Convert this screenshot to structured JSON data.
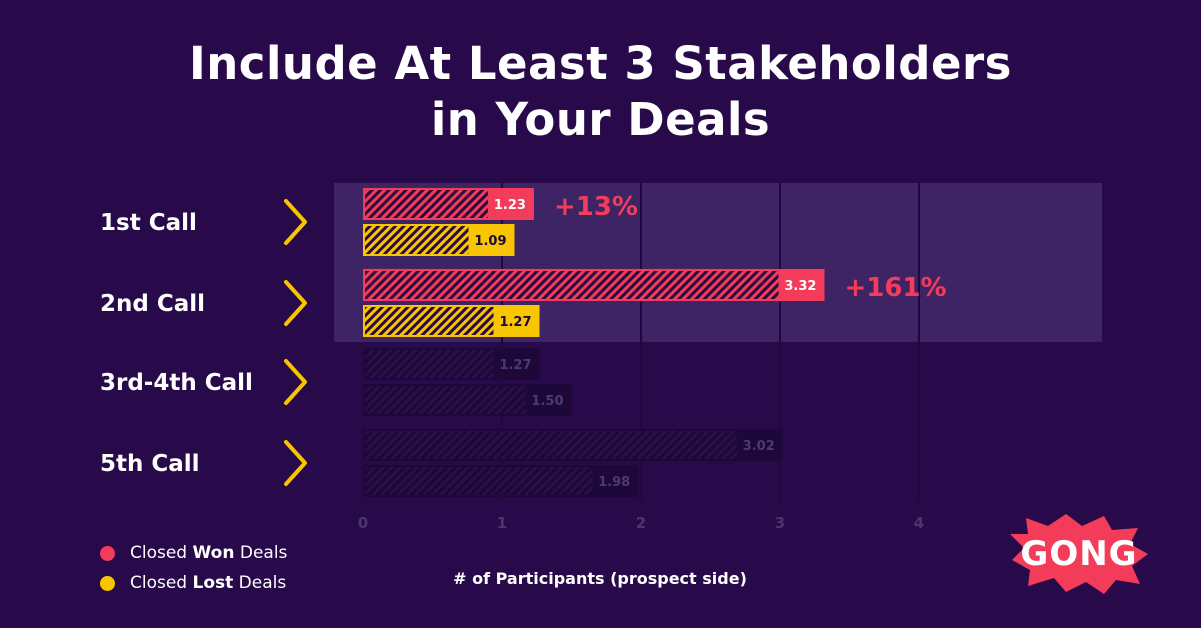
{
  "title": {
    "line1": "Include At Least 3 Stakeholders",
    "line2": "in Your Deals"
  },
  "chart_data": {
    "type": "bar",
    "orientation": "horizontal",
    "categories": [
      "1st Call",
      "2nd Call",
      "3rd-4th Call",
      "5th Call"
    ],
    "series": [
      {
        "name": "Closed Won Deals",
        "values": [
          1.23,
          3.32,
          1.27,
          3.02
        ]
      },
      {
        "name": "Closed Lost Deals",
        "values": [
          1.09,
          1.27,
          1.5,
          1.98
        ]
      }
    ],
    "value_labels": {
      "won": [
        "1.23",
        "3.32",
        "1.27",
        "3.02"
      ],
      "lost": [
        "1.09",
        "1.27",
        "1.50",
        "1.98"
      ]
    },
    "annotations": [
      "+13%",
      "+161%"
    ],
    "highlighted_categories": [
      "1st Call",
      "2nd Call"
    ],
    "x_ticks": [
      0,
      1,
      2,
      3,
      4
    ],
    "xlim": [
      0,
      4.3
    ],
    "xlabel": "# of Participants (prospect side)",
    "legend_position": "bottom-left",
    "grid": true
  },
  "legend": {
    "won": {
      "pre": "Closed ",
      "bold": "Won",
      "post": " Deals"
    },
    "lost": {
      "pre": "Closed ",
      "bold": "Lost",
      "post": " Deals"
    }
  },
  "colors": {
    "background": "#280a4b",
    "won": "#f23c5a",
    "lost": "#f7c600",
    "highlight_band": "#3f2465",
    "muted_bar": "#1e0839",
    "chevron": "#f7c600"
  },
  "icons": {
    "chevron": "chevron-right-icon",
    "logo": "gong-logo"
  },
  "logo": {
    "text": "GONG"
  }
}
